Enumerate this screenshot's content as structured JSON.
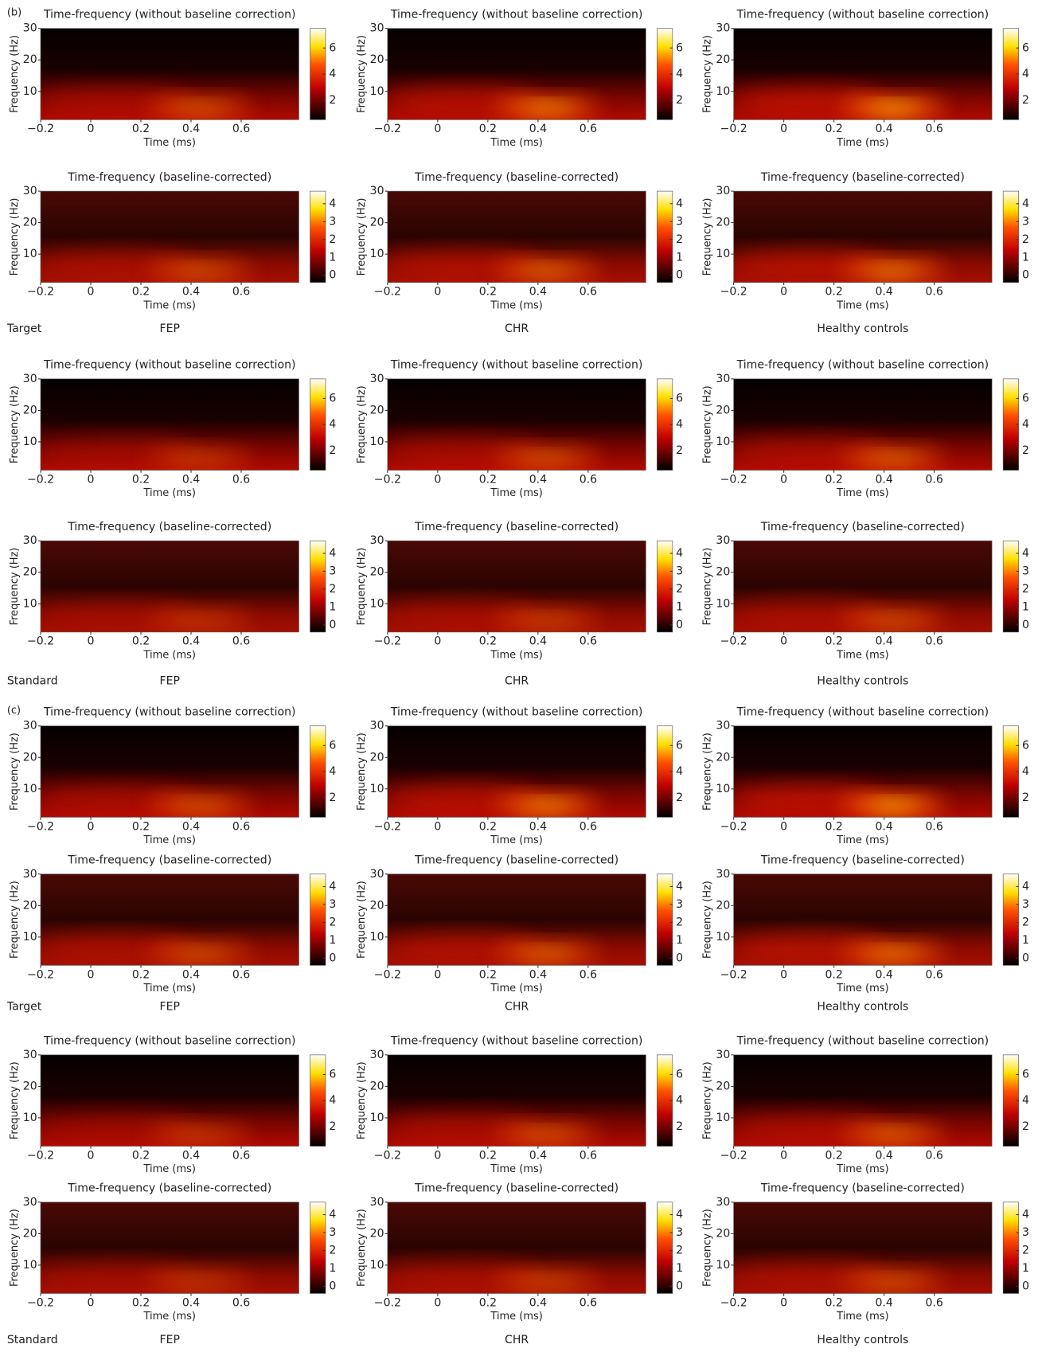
{
  "axes": {
    "xlabel": "Time (ms)",
    "ylabel": "Frequency (Hz)",
    "xlim": [
      -0.2,
      0.83
    ],
    "xticks": [
      {
        "value": -0.2,
        "label": "−0.2"
      },
      0,
      0.2,
      0.4,
      0.6
    ],
    "ylim": [
      1,
      30
    ],
    "yticks": [
      10,
      20,
      30
    ]
  },
  "rows": [
    {
      "title": "Time-frequency (without baseline correction)",
      "clim": [
        0.5,
        7.5
      ],
      "cticks": [
        2,
        4,
        6
      ]
    },
    {
      "title": "Time-frequency (baseline-corrected)",
      "clim": [
        -0.4,
        4.7
      ],
      "cticks": [
        0,
        1,
        2,
        3,
        4
      ]
    }
  ],
  "groups": [
    "FEP",
    "CHR",
    "Healthy controls"
  ],
  "blocks": [
    {
      "panel": "(b)",
      "condition": "Target"
    },
    {
      "condition": "Standard"
    },
    {
      "panel": "(c)",
      "condition": "Target"
    },
    {
      "condition": "Standard"
    }
  ]
}
